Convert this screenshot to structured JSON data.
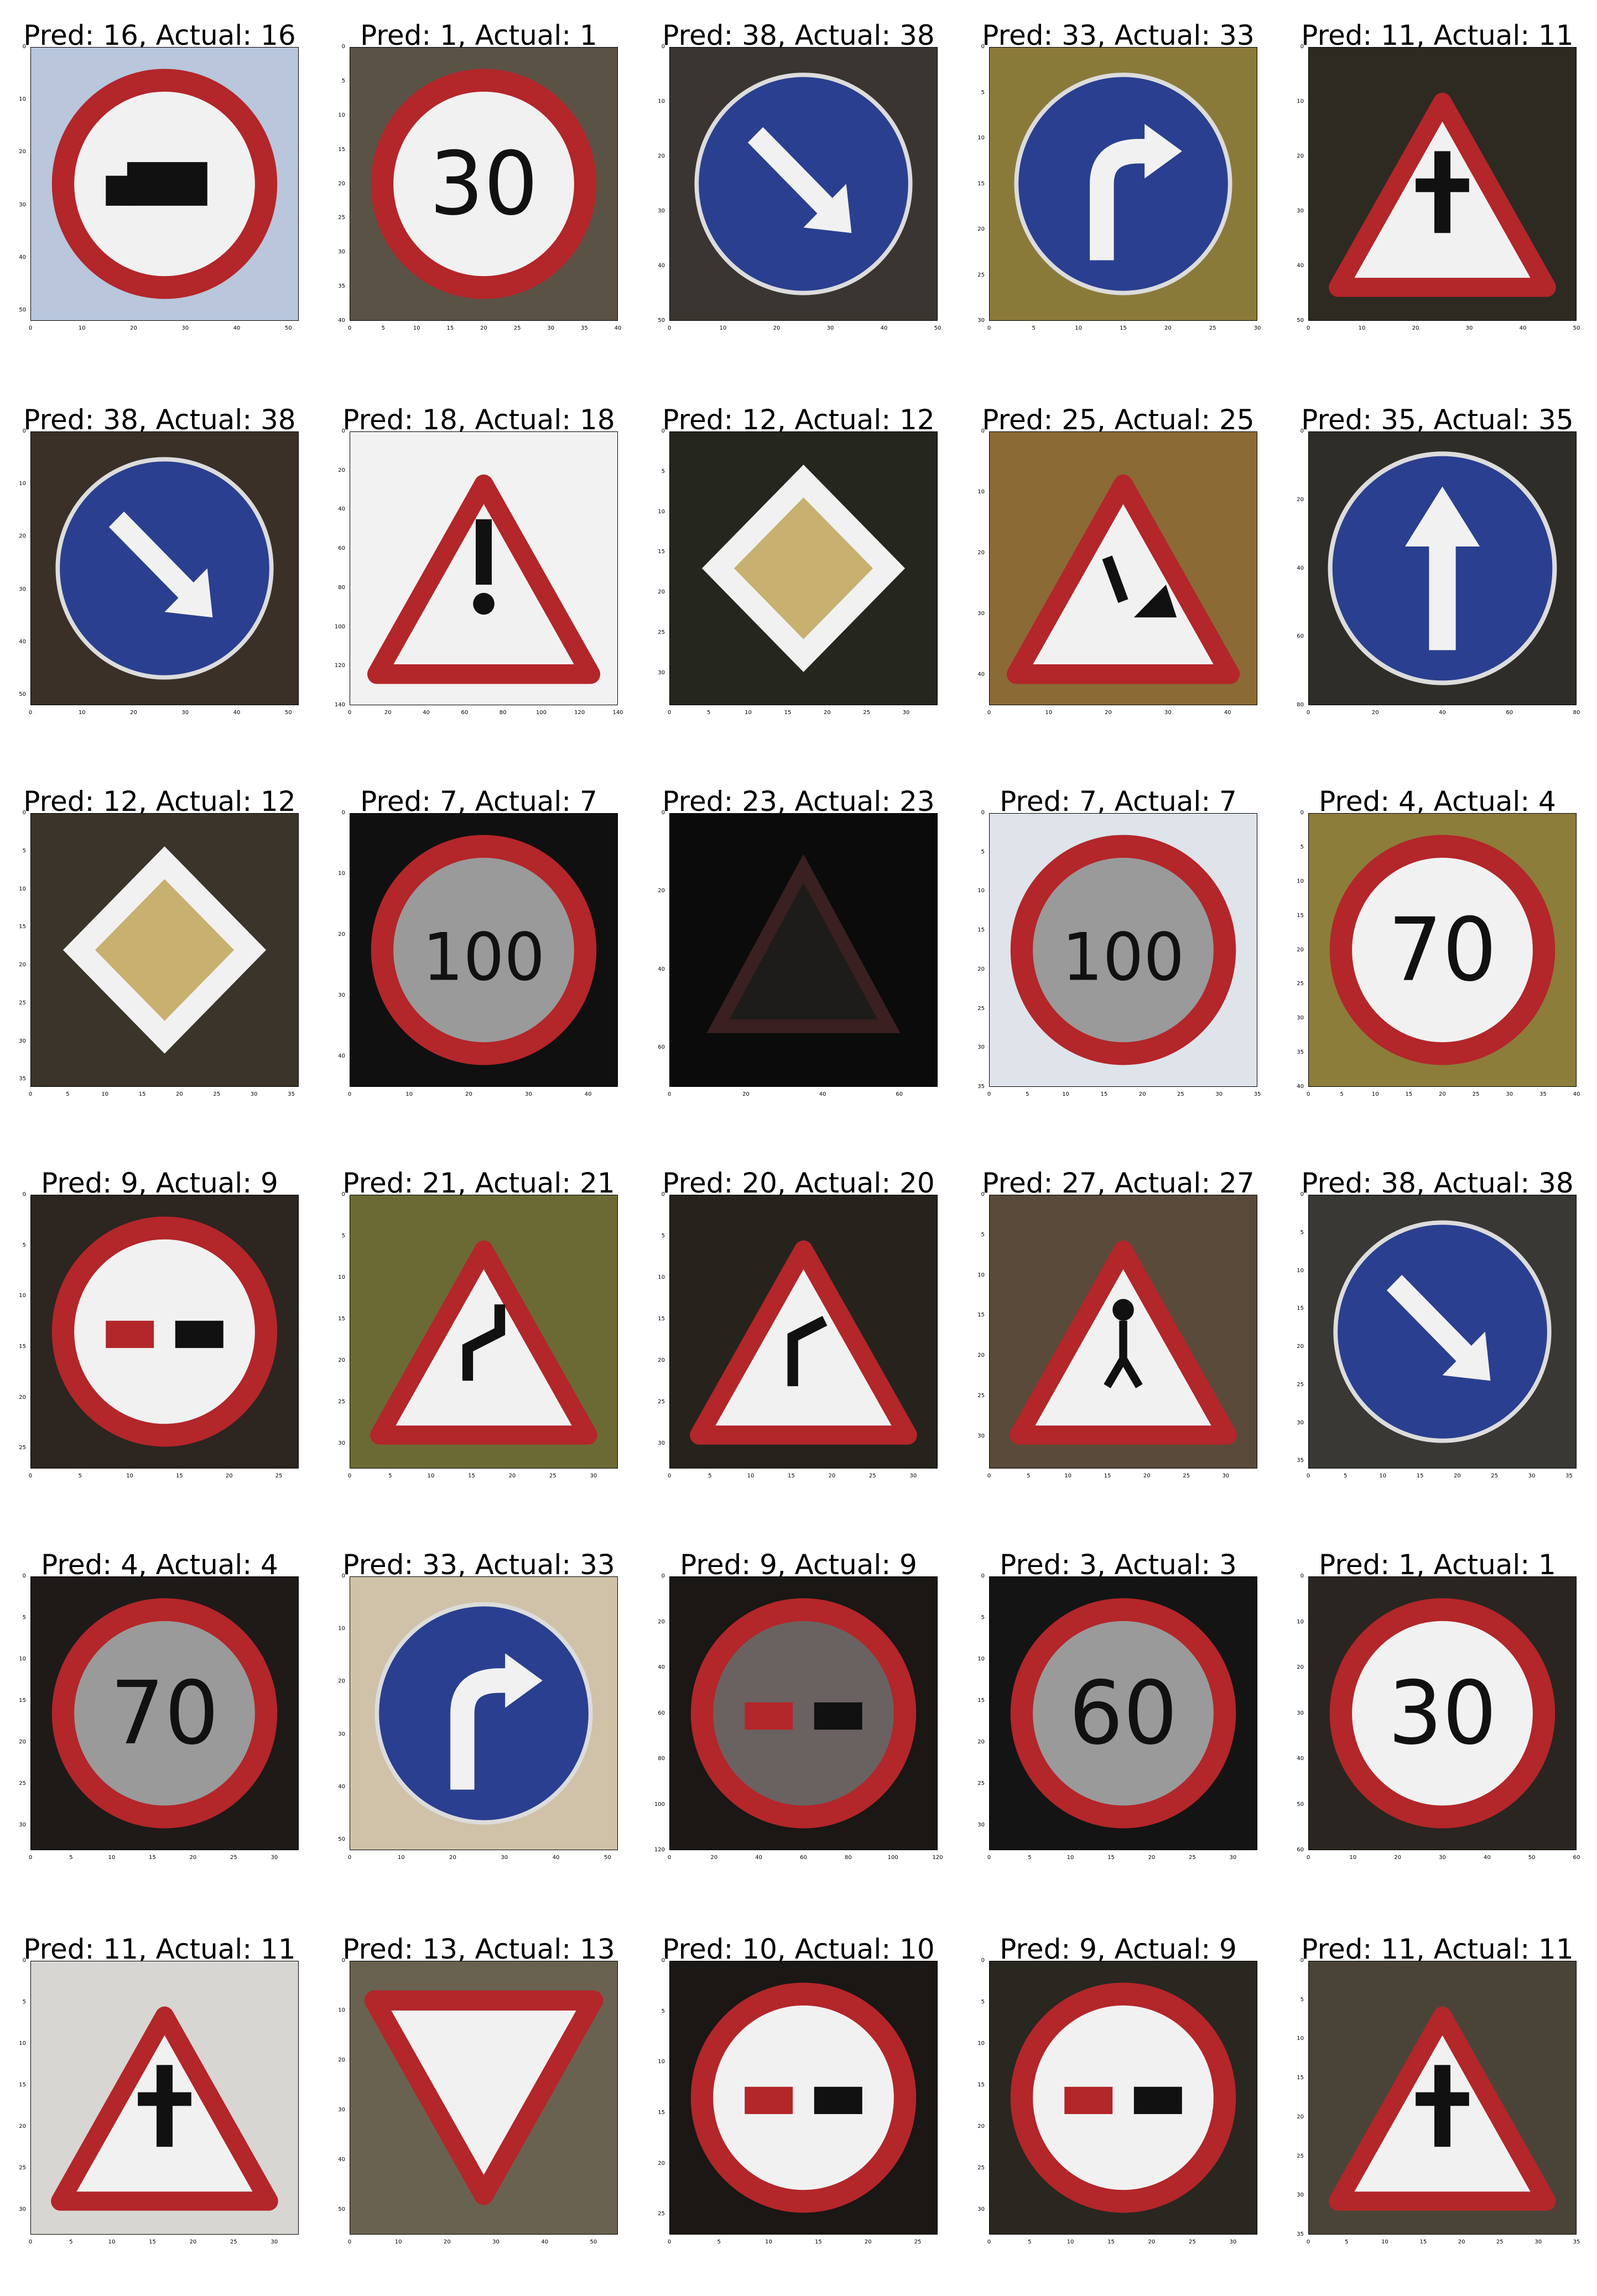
{
  "figure": {
    "rows": 6,
    "cols": 5,
    "panels": [
      {
        "title": "Pred: 16, Actual: 16",
        "pred": 16,
        "actual": 16,
        "sign": "no-trucks",
        "bg": "#b9c6dc",
        "size": 52
      },
      {
        "title": "Pred: 1, Actual: 1",
        "pred": 1,
        "actual": 1,
        "sign": "speed-30",
        "bg": "#5b5246",
        "size": 40
      },
      {
        "title": "Pred: 38, Actual: 38",
        "pred": 38,
        "actual": 38,
        "sign": "keep-right",
        "bg": "#3a3530",
        "size": 50
      },
      {
        "title": "Pred: 33, Actual: 33",
        "pred": 33,
        "actual": 33,
        "sign": "turn-right",
        "bg": "#8a7a3a",
        "size": 30
      },
      {
        "title": "Pred: 11, Actual: 11",
        "pred": 11,
        "actual": 11,
        "sign": "right-of-way",
        "bg": "#2d2a22",
        "size": 50
      },
      {
        "title": "Pred: 38, Actual: 38",
        "pred": 38,
        "actual": 38,
        "sign": "keep-right",
        "bg": "#3a3028",
        "size": 52
      },
      {
        "title": "Pred: 18, Actual: 18",
        "pred": 18,
        "actual": 18,
        "sign": "caution",
        "bg": "#f2f2f2",
        "size": 140
      },
      {
        "title": "Pred: 12, Actual: 12",
        "pred": 12,
        "actual": 12,
        "sign": "priority-road",
        "bg": "#25261e",
        "size": 34
      },
      {
        "title": "Pred: 25, Actual: 25",
        "pred": 25,
        "actual": 25,
        "sign": "road-work",
        "bg": "#8b6a35",
        "size": 45
      },
      {
        "title": "Pred: 35, Actual: 35",
        "pred": 35,
        "actual": 35,
        "sign": "ahead-only",
        "bg": "#2f2d27",
        "size": 80
      },
      {
        "title": "Pred: 12, Actual: 12",
        "pred": 12,
        "actual": 12,
        "sign": "priority-road",
        "bg": "#3a342a",
        "size": 36
      },
      {
        "title": "Pred: 7, Actual: 7",
        "pred": 7,
        "actual": 7,
        "sign": "speed-100",
        "bg": "#101010",
        "size": 45
      },
      {
        "title": "Pred: 23, Actual: 23",
        "pred": 23,
        "actual": 23,
        "sign": "slippery",
        "bg": "#0b0b0b",
        "size": 70
      },
      {
        "title": "Pred: 7, Actual: 7",
        "pred": 7,
        "actual": 7,
        "sign": "speed-100-dark",
        "bg": "#dfe3ea",
        "size": 35
      },
      {
        "title": "Pred: 4, Actual: 4",
        "pred": 4,
        "actual": 4,
        "sign": "speed-70",
        "bg": "#8c7d3a",
        "size": 40
      },
      {
        "title": "Pred: 9, Actual: 9",
        "pred": 9,
        "actual": 9,
        "sign": "no-passing",
        "bg": "#2c2520",
        "size": 27
      },
      {
        "title": "Pred: 21, Actual: 21",
        "pred": 21,
        "actual": 21,
        "sign": "double-curve",
        "bg": "#6b6a35",
        "size": 33
      },
      {
        "title": "Pred: 20, Actual: 20",
        "pred": 20,
        "actual": 20,
        "sign": "curve-right",
        "bg": "#26231c",
        "size": 33
      },
      {
        "title": "Pred: 27, Actual: 27",
        "pred": 27,
        "actual": 27,
        "sign": "pedestrians",
        "bg": "#5a4a3a",
        "size": 34
      },
      {
        "title": "Pred: 38, Actual: 38",
        "pred": 38,
        "actual": 38,
        "sign": "keep-right",
        "bg": "#3a3834",
        "size": 36
      },
      {
        "title": "Pred: 4, Actual: 4",
        "pred": 4,
        "actual": 4,
        "sign": "speed-70-dark",
        "bg": "#1e1a18",
        "size": 33
      },
      {
        "title": "Pred: 33, Actual: 33",
        "pred": 33,
        "actual": 33,
        "sign": "turn-right",
        "bg": "#cfc2a8",
        "size": 52
      },
      {
        "title": "Pred: 9, Actual: 9",
        "pred": 9,
        "actual": 9,
        "sign": "no-passing-cars",
        "bg": "#1a1714",
        "size": 120
      },
      {
        "title": "Pred: 3, Actual: 3",
        "pred": 3,
        "actual": 3,
        "sign": "speed-60",
        "bg": "#141414",
        "size": 33
      },
      {
        "title": "Pred: 1, Actual: 1",
        "pred": 1,
        "actual": 1,
        "sign": "speed-30",
        "bg": "#2a2520",
        "size": 60
      },
      {
        "title": "Pred: 11, Actual: 11",
        "pred": 11,
        "actual": 11,
        "sign": "right-of-way",
        "bg": "#d8d6d2",
        "size": 33
      },
      {
        "title": "Pred: 13, Actual: 13",
        "pred": 13,
        "actual": 13,
        "sign": "yield",
        "bg": "#6a6250",
        "size": 55
      },
      {
        "title": "Pred: 10, Actual: 10",
        "pred": 10,
        "actual": 10,
        "sign": "no-passing-trucks",
        "bg": "#1a1714",
        "size": 27
      },
      {
        "title": "Pred: 9, Actual: 9",
        "pred": 9,
        "actual": 9,
        "sign": "no-passing",
        "bg": "#2a2620",
        "size": 33
      },
      {
        "title": "Pred: 11, Actual: 11",
        "pred": 11,
        "actual": 11,
        "sign": "right-of-way",
        "bg": "#4a4438",
        "size": 35
      }
    ]
  }
}
